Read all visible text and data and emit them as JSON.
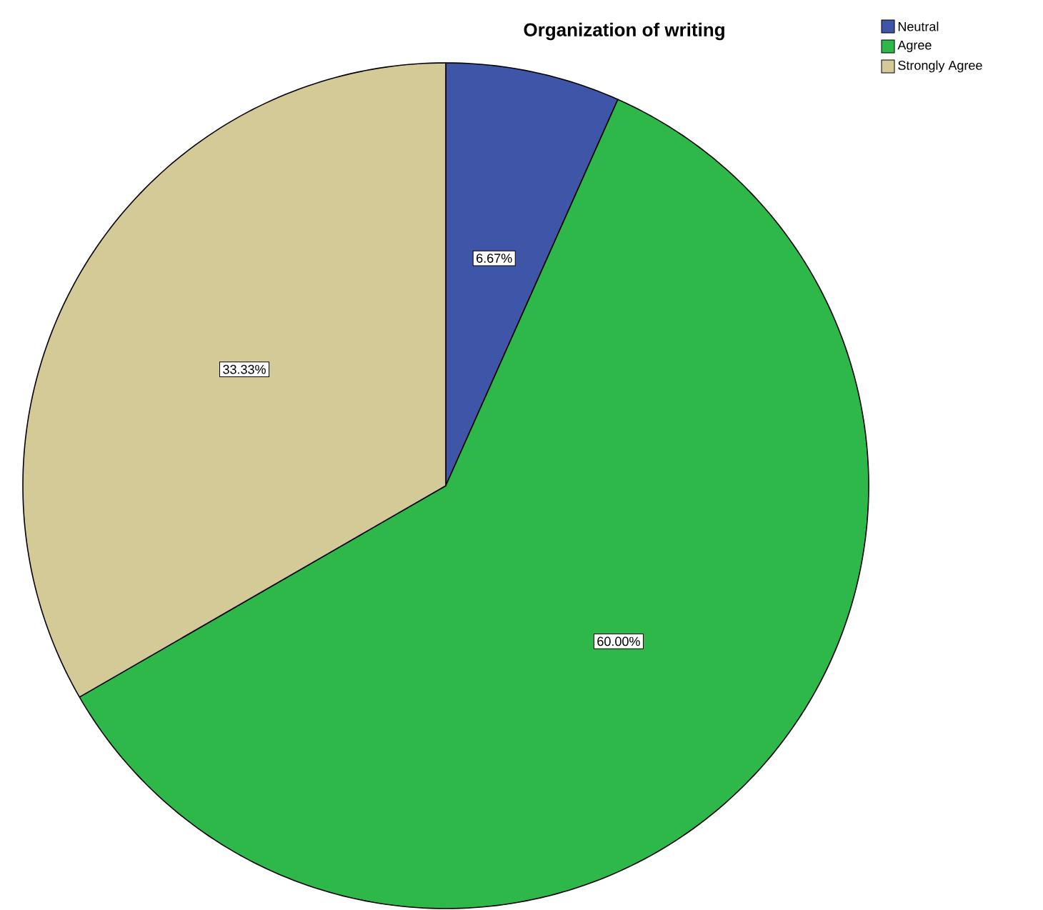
{
  "chart_data": {
    "type": "pie",
    "title": "Organization of writing",
    "categories": [
      "Neutral",
      "Agree",
      "Strongly Agree"
    ],
    "values": [
      6.67,
      60.0,
      33.33
    ],
    "value_labels": [
      "6.67%",
      "60.00%",
      "33.33%"
    ],
    "colors": [
      "#3f56a8",
      "#2eb84a",
      "#d3ca98"
    ],
    "legend": "top right"
  }
}
